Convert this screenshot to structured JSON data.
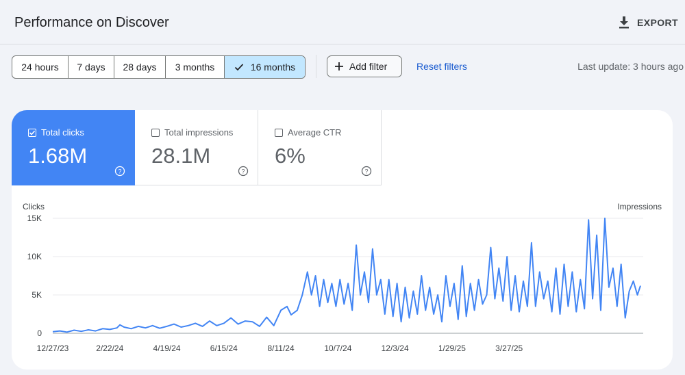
{
  "header": {
    "title": "Performance on Discover",
    "export_label": "EXPORT"
  },
  "toolbar": {
    "ranges": [
      "24 hours",
      "7 days",
      "28 days",
      "3 months",
      "16 months"
    ],
    "selected_range": "16 months",
    "add_filter_label": "Add filter",
    "reset_filters_label": "Reset filters",
    "last_update": "Last update: 3 hours ago"
  },
  "metrics": [
    {
      "label": "Total clicks",
      "value": "1.68M",
      "checked": true,
      "color": "#4285f4"
    },
    {
      "label": "Total impressions",
      "value": "28.1M",
      "checked": false
    },
    {
      "label": "Average CTR",
      "value": "6%",
      "checked": false
    }
  ],
  "chart_data": {
    "type": "line",
    "ylabel": "Clicks",
    "y2label": "Impressions",
    "yticks": [
      "0",
      "5K",
      "10K",
      "15K"
    ],
    "ylim": [
      0,
      15000
    ],
    "xticks": [
      "12/27/23",
      "2/22/24",
      "4/19/24",
      "6/15/24",
      "8/11/24",
      "10/7/24",
      "12/3/24",
      "1/29/25",
      "3/27/25"
    ],
    "x_start": "12/27/23",
    "grid": true,
    "series": [
      {
        "color": "#4285f4",
        "x_step_days": 1,
        "anchors_day_value": [
          [
            0,
            200
          ],
          [
            7,
            300
          ],
          [
            14,
            150
          ],
          [
            21,
            400
          ],
          [
            28,
            250
          ],
          [
            35,
            450
          ],
          [
            42,
            300
          ],
          [
            49,
            600
          ],
          [
            56,
            500
          ],
          [
            63,
            700
          ],
          [
            66,
            1100
          ],
          [
            70,
            800
          ],
          [
            77,
            600
          ],
          [
            84,
            900
          ],
          [
            91,
            700
          ],
          [
            98,
            1000
          ],
          [
            105,
            650
          ],
          [
            112,
            900
          ],
          [
            119,
            1200
          ],
          [
            126,
            800
          ],
          [
            133,
            1000
          ],
          [
            140,
            1300
          ],
          [
            147,
            900
          ],
          [
            154,
            1600
          ],
          [
            161,
            1000
          ],
          [
            168,
            1300
          ],
          [
            175,
            2000
          ],
          [
            182,
            1200
          ],
          [
            189,
            1600
          ],
          [
            196,
            1500
          ],
          [
            203,
            900
          ],
          [
            210,
            2100
          ],
          [
            217,
            1000
          ],
          [
            224,
            3000
          ],
          [
            230,
            3500
          ],
          [
            234,
            2400
          ],
          [
            240,
            3000
          ],
          [
            245,
            5000
          ],
          [
            250,
            8000
          ],
          [
            254,
            5000
          ],
          [
            258,
            7500
          ],
          [
            262,
            3500
          ],
          [
            266,
            7000
          ],
          [
            270,
            4000
          ],
          [
            274,
            6500
          ],
          [
            278,
            3500
          ],
          [
            282,
            7000
          ],
          [
            286,
            3800
          ],
          [
            290,
            6500
          ],
          [
            294,
            3000
          ],
          [
            298,
            11500
          ],
          [
            302,
            5000
          ],
          [
            306,
            8000
          ],
          [
            310,
            4000
          ],
          [
            314,
            11000
          ],
          [
            318,
            5000
          ],
          [
            322,
            7000
          ],
          [
            326,
            2500
          ],
          [
            330,
            7000
          ],
          [
            334,
            2200
          ],
          [
            338,
            6500
          ],
          [
            342,
            1500
          ],
          [
            346,
            6000
          ],
          [
            350,
            2000
          ],
          [
            354,
            5500
          ],
          [
            358,
            2500
          ],
          [
            362,
            7500
          ],
          [
            366,
            3000
          ],
          [
            370,
            6000
          ],
          [
            374,
            2500
          ],
          [
            378,
            5000
          ],
          [
            382,
            1500
          ],
          [
            386,
            7500
          ],
          [
            390,
            3500
          ],
          [
            394,
            6500
          ],
          [
            398,
            1800
          ],
          [
            402,
            8800
          ],
          [
            406,
            2200
          ],
          [
            410,
            6500
          ],
          [
            414,
            3000
          ],
          [
            418,
            7000
          ],
          [
            422,
            3800
          ],
          [
            426,
            5000
          ],
          [
            430,
            11200
          ],
          [
            434,
            4500
          ],
          [
            438,
            8500
          ],
          [
            442,
            4200
          ],
          [
            446,
            10000
          ],
          [
            450,
            3000
          ],
          [
            454,
            7500
          ],
          [
            458,
            2800
          ],
          [
            462,
            6800
          ],
          [
            466,
            3500
          ],
          [
            470,
            11800
          ],
          [
            474,
            3500
          ],
          [
            478,
            8000
          ],
          [
            482,
            4500
          ],
          [
            486,
            6800
          ],
          [
            490,
            2800
          ],
          [
            494,
            8500
          ],
          [
            498,
            2500
          ],
          [
            502,
            9000
          ],
          [
            506,
            3500
          ],
          [
            510,
            8000
          ],
          [
            514,
            2800
          ],
          [
            518,
            7000
          ],
          [
            522,
            3200
          ],
          [
            526,
            14800
          ],
          [
            530,
            4500
          ],
          [
            534,
            12800
          ],
          [
            538,
            3000
          ],
          [
            542,
            15000
          ],
          [
            546,
            6000
          ],
          [
            550,
            8500
          ],
          [
            554,
            3500
          ],
          [
            558,
            9000
          ],
          [
            562,
            2000
          ],
          [
            566,
            5500
          ],
          [
            570,
            6800
          ],
          [
            574,
            5000
          ],
          [
            577,
            6200
          ]
        ]
      }
    ]
  },
  "icons": {
    "export": "download-icon",
    "check": "check-icon",
    "add": "plus-icon",
    "help": "help-icon"
  }
}
